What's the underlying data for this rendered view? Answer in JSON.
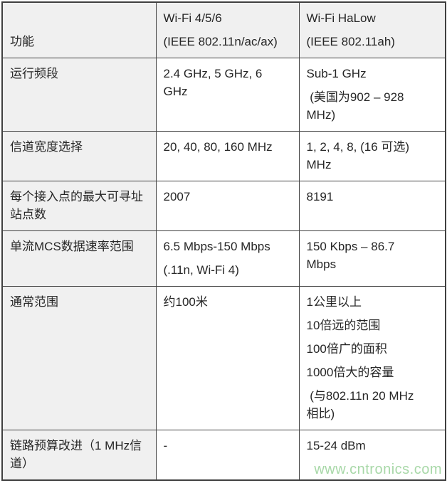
{
  "colors": {
    "head_bg": "#f0f0f0",
    "cell_bg": "#ffffff",
    "border": "#404040",
    "text": "#262626",
    "watermark": "#a8d8a8"
  },
  "table": {
    "header": {
      "feature": [
        "功能"
      ],
      "wifi456": [
        "Wi-Fi 4/5/6",
        "(IEEE 802.11n/ac/ax)"
      ],
      "halow": [
        "Wi-Fi HaLow",
        "(IEEE 802.11ah)"
      ]
    },
    "rows": [
      {
        "feature": [
          "运行频段"
        ],
        "wifi456": [
          "2.4 GHz, 5 GHz, 6\nGHz"
        ],
        "halow": [
          "Sub-1 GHz",
          " (美国为902 – 928\nMHz)"
        ]
      },
      {
        "feature": [
          "信道宽度选择"
        ],
        "wifi456": [
          "20, 40, 80, 160 MHz"
        ],
        "halow": [
          "1, 2, 4, 8, (16 可选)\nMHz"
        ]
      },
      {
        "feature": [
          "每个接入点的最大可寻址\n站点数"
        ],
        "wifi456": [
          "2007"
        ],
        "halow": [
          "8191"
        ]
      },
      {
        "feature": [
          "单流MCS数据速率范围"
        ],
        "wifi456": [
          "6.5 Mbps-150 Mbps",
          "(.11n, Wi-Fi 4)"
        ],
        "halow": [
          "150 Kbps – 86.7\nMbps"
        ]
      },
      {
        "feature": [
          "通常范围"
        ],
        "wifi456": [
          "约100米"
        ],
        "halow": [
          "1公里以上",
          "10倍远的范围",
          "100倍广的面积",
          "1000倍大的容量",
          " (与802.11n 20 MHz\n相比)"
        ]
      },
      {
        "feature": [
          "链路预算改进（1 MHz信\n道）"
        ],
        "wifi456": [
          "-"
        ],
        "halow": [
          "15-24 dBm"
        ]
      }
    ]
  },
  "watermark": {
    "text": "www.cntronics.com"
  }
}
